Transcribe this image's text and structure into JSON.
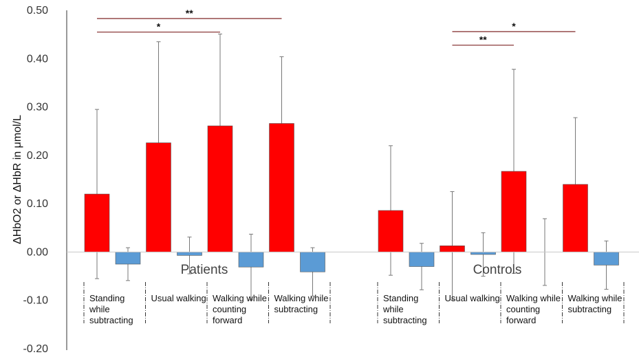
{
  "chart_data": {
    "type": "bar",
    "ylabel": "ΔHbO2 or ΔHbR in μmol/L",
    "ylim": [
      -0.2,
      0.5
    ],
    "yticks": [
      "-0.20",
      "-0.10",
      "0.00",
      "0.10",
      "0.20",
      "0.30",
      "0.40",
      "0.50"
    ],
    "grid": false,
    "colors": {
      "HbO2": "#ff0000",
      "HbR": "#5b9bd5",
      "significance": "#8b3a3a",
      "errorbar": "#777777"
    },
    "groups": [
      {
        "name": "Patients",
        "categories": [
          {
            "label": [
              "Standing",
              "while",
              "subtracting"
            ],
            "HbO2": {
              "value": 0.12,
              "err": 0.175
            },
            "HbR": {
              "value": -0.025,
              "err": 0.034
            }
          },
          {
            "label": [
              "Usual walking"
            ],
            "HbO2": {
              "value": 0.226,
              "err": 0.209
            },
            "HbR": {
              "value": -0.007,
              "err": 0.038
            }
          },
          {
            "label": [
              "Walking while",
              "counting",
              "forward"
            ],
            "HbO2": {
              "value": 0.261,
              "err": 0.19
            },
            "HbR": {
              "value": -0.031,
              "err": 0.068
            }
          },
          {
            "label": [
              "Walking while",
              "subtracting"
            ],
            "HbO2": {
              "value": 0.266,
              "err": 0.138
            },
            "HbR": {
              "value": -0.041,
              "err": 0.05
            }
          }
        ]
      },
      {
        "name": "Controls",
        "categories": [
          {
            "label": [
              "Standing",
              "while",
              "subtracting"
            ],
            "HbO2": {
              "value": 0.086,
              "err": 0.134
            },
            "HbR": {
              "value": -0.03,
              "err": 0.048
            }
          },
          {
            "label": [
              "Usual walking"
            ],
            "HbO2": {
              "value": 0.013,
              "err": 0.112
            },
            "HbR": {
              "value": -0.005,
              "err": 0.045
            }
          },
          {
            "label": [
              "Walking while",
              "counting",
              "forward"
            ],
            "HbO2": {
              "value": 0.167,
              "err": 0.211
            },
            "HbR": {
              "value": 0.0,
              "err": 0.069
            }
          },
          {
            "label": [
              "Walking while",
              "subtracting"
            ],
            "HbO2": {
              "value": 0.14,
              "err": 0.138
            },
            "HbR": {
              "value": -0.027,
              "err": 0.05
            }
          }
        ]
      }
    ],
    "annotations": [
      {
        "text": "**",
        "group": 0,
        "from": 0,
        "to": 3,
        "y": 0.483
      },
      {
        "text": "*",
        "group": 0,
        "from": 0,
        "to": 2,
        "y": 0.455
      },
      {
        "text": "*",
        "group": 1,
        "from": 1,
        "to": 3,
        "y": 0.456
      },
      {
        "text": "**",
        "group": 1,
        "from": 1,
        "to": 2,
        "y": 0.428
      }
    ]
  }
}
